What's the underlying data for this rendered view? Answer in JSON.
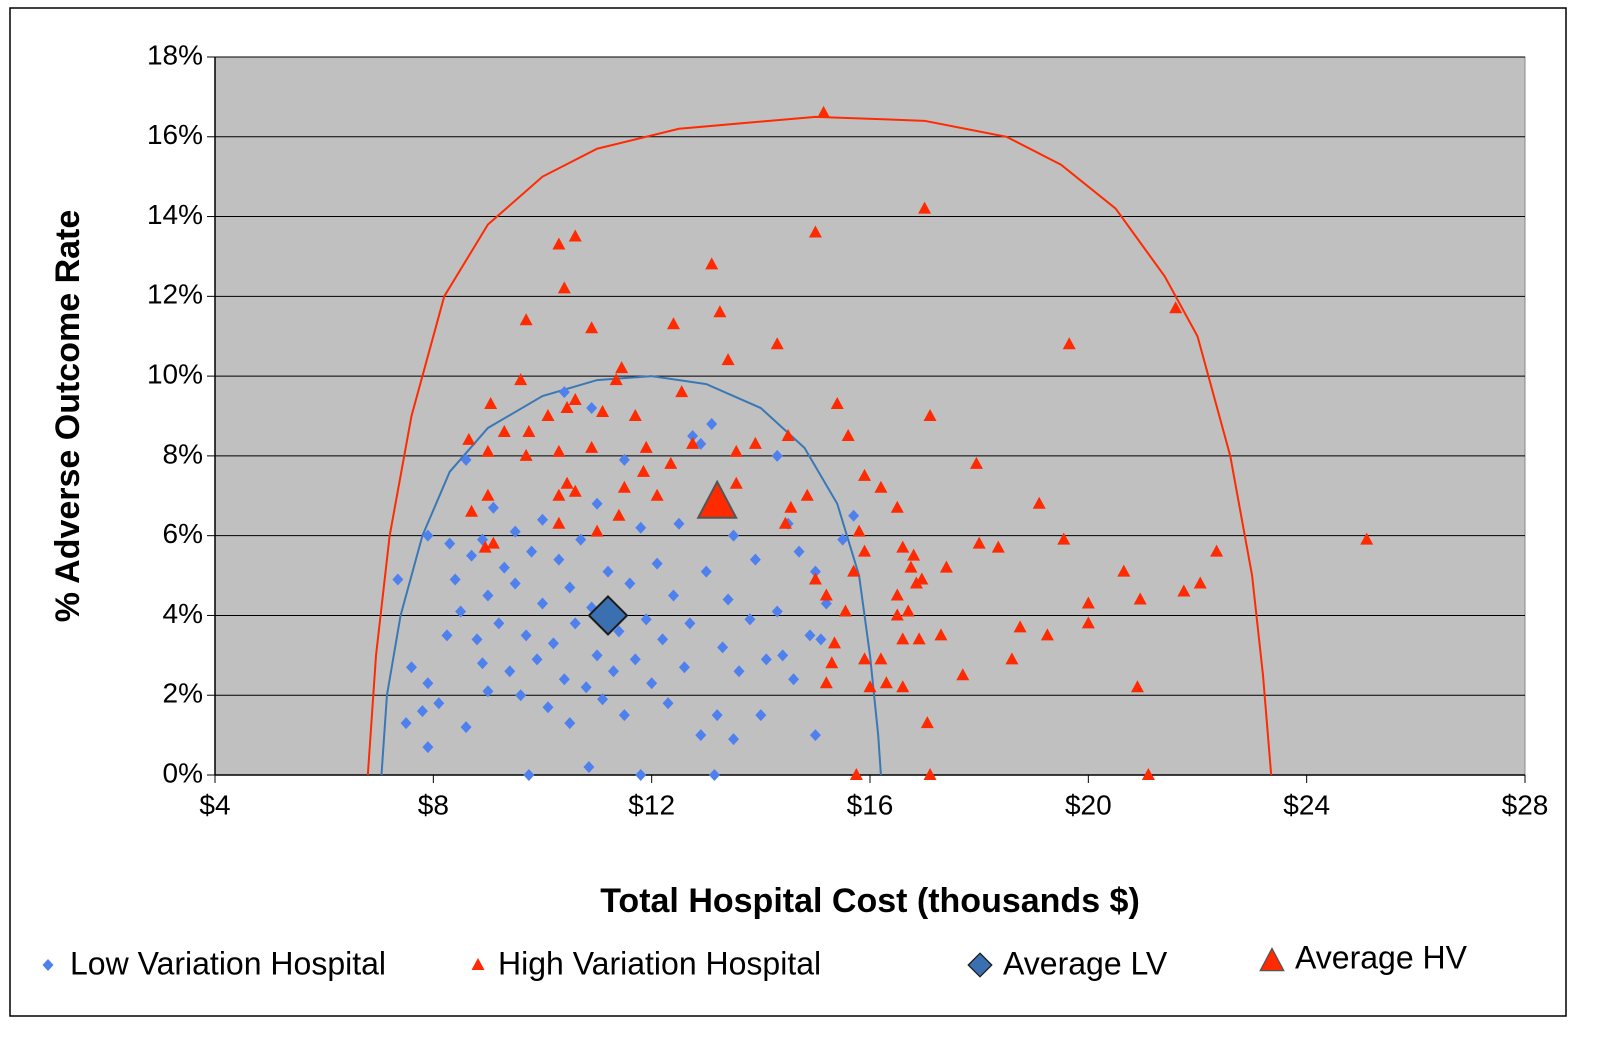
{
  "chart_data": {
    "type": "scatter",
    "xlabel": "Total Hospital Cost (thousands $)",
    "ylabel": "% Adverse Outcome Rate",
    "xlim": [
      4,
      28
    ],
    "ylim": [
      0,
      18
    ],
    "xticks": [
      {
        "value": 4,
        "label": "$4"
      },
      {
        "value": 8,
        "label": "$8"
      },
      {
        "value": 12,
        "label": "$12"
      },
      {
        "value": 16,
        "label": "$16"
      },
      {
        "value": 20,
        "label": "$20"
      },
      {
        "value": 24,
        "label": "$24"
      },
      {
        "value": 28,
        "label": "$28"
      }
    ],
    "yticks": [
      {
        "value": 0,
        "label": "0%"
      },
      {
        "value": 2,
        "label": "2%"
      },
      {
        "value": 4,
        "label": "4%"
      },
      {
        "value": 6,
        "label": "6%"
      },
      {
        "value": 8,
        "label": "8%"
      },
      {
        "value": 10,
        "label": "10%"
      },
      {
        "value": 12,
        "label": "12%"
      },
      {
        "value": 14,
        "label": "14%"
      },
      {
        "value": 16,
        "label": "16%"
      },
      {
        "value": 18,
        "label": "18%"
      }
    ],
    "grid": true,
    "legend": "bottom",
    "series": [
      {
        "name": "Low Variation Hospital",
        "color": "#4f81ee",
        "marker": "diamond",
        "x": [
          7.35,
          7.9,
          7.6,
          7.5,
          7.8,
          7.9,
          7.9,
          8.1,
          8.25,
          8.3,
          8.4,
          8.5,
          8.6,
          8.6,
          8.7,
          8.8,
          8.9,
          8.9,
          9,
          9,
          9.1,
          9.2,
          9.3,
          9.4,
          9.5,
          9.5,
          9.6,
          9.7,
          9.75,
          9.8,
          9.9,
          10,
          10,
          10.1,
          10.2,
          10.3,
          10.4,
          10.4,
          10.5,
          10.5,
          10.6,
          10.7,
          10.8,
          10.85,
          10.9,
          10.9,
          11,
          11,
          11.1,
          11.2,
          11.3,
          11.4,
          11.5,
          11.5,
          11.6,
          11.7,
          11.8,
          11.8,
          11.9,
          12,
          12.1,
          12.2,
          12.3,
          12.4,
          12.5,
          12.6,
          12.7,
          12.75,
          12.9,
          12.9,
          13,
          13.1,
          13.15,
          13.2,
          13.3,
          13.4,
          13.5,
          13.5,
          13.6,
          13.8,
          13.9,
          14,
          14.1,
          14.3,
          14.3,
          14.4,
          14.5,
          14.6,
          14.7,
          14.9,
          15,
          15,
          15.1,
          15.2,
          15.5,
          15.7
        ],
        "values": [
          4.9,
          6,
          2.7,
          1.3,
          1.6,
          0.7,
          2.3,
          1.8,
          3.5,
          5.8,
          4.9,
          4.1,
          7.9,
          1.2,
          5.5,
          3.4,
          2.8,
          5.9,
          4.5,
          2.1,
          6.7,
          3.8,
          5.2,
          2.6,
          6.1,
          4.8,
          2,
          3.5,
          0,
          5.6,
          2.9,
          4.3,
          6.4,
          1.7,
          3.3,
          5.4,
          9.6,
          2.4,
          4.7,
          1.3,
          3.8,
          5.9,
          2.2,
          0.2,
          9.2,
          4.2,
          3,
          6.8,
          1.9,
          5.1,
          2.6,
          3.6,
          7.9,
          1.5,
          4.8,
          2.9,
          0,
          6.2,
          3.9,
          2.3,
          5.3,
          3.4,
          1.8,
          4.5,
          6.3,
          2.7,
          3.8,
          8.5,
          8.3,
          1,
          5.1,
          8.8,
          0,
          1.5,
          3.2,
          4.4,
          0.9,
          6,
          2.6,
          3.9,
          5.4,
          1.5,
          2.9,
          8,
          4.1,
          3,
          6.3,
          2.4,
          5.6,
          3.5,
          5.1,
          1,
          3.4,
          4.3,
          5.9,
          6.5
        ]
      },
      {
        "name": "High Variation Hospital",
        "color": "#ff2a00",
        "marker": "triangle",
        "x": [
          15.15,
          17,
          10.6,
          10.3,
          13.1,
          15,
          10.4,
          13.25,
          21.6,
          9.7,
          10.9,
          12.4,
          14.3,
          19.65,
          13.4,
          11.45,
          11.35,
          9.6,
          12.55,
          10.6,
          10.45,
          11.1,
          11.7,
          9.05,
          15.4,
          17.1,
          10.1,
          9.75,
          9.3,
          8.65,
          11.9,
          13.9,
          14.5,
          15.6,
          12.35,
          10.3,
          10.9,
          9,
          9.7,
          13.55,
          11.85,
          15.9,
          16.2,
          17.95,
          10.45,
          10.6,
          11.5,
          12.1,
          13.55,
          14.55,
          14.85,
          9,
          8.7,
          10.3,
          11.4,
          11,
          12.75,
          16.5,
          19.1,
          14.45,
          15.8,
          10.3,
          8.95,
          9.1,
          18,
          18.35,
          19.55,
          22.35,
          25.1,
          15.9,
          16.6,
          16.75,
          16.8,
          17.4,
          15.7,
          20.65,
          15,
          16.85,
          16.95,
          16.5,
          15.2,
          21.75,
          22.05,
          20,
          20.95,
          15.55,
          16.7,
          16.5,
          20,
          18.75,
          19.25,
          16.6,
          16.9,
          17.3,
          15.35,
          15.9,
          16.2,
          15.3,
          18.6,
          17.7,
          16.3,
          16.6,
          16,
          15.2,
          20.9,
          17.05,
          15.75,
          17.1,
          21.1
        ],
        "values": [
          16.6,
          14.2,
          13.5,
          13.3,
          12.8,
          13.6,
          12.2,
          11.6,
          11.7,
          11.4,
          11.2,
          11.3,
          10.8,
          10.8,
          10.4,
          10.2,
          9.9,
          9.9,
          9.6,
          9.4,
          9.2,
          9.1,
          9,
          9.3,
          9.3,
          9,
          9,
          8.6,
          8.6,
          8.4,
          8.2,
          8.3,
          8.5,
          8.5,
          7.8,
          8.1,
          8.2,
          8.1,
          8,
          8.1,
          7.6,
          7.5,
          7.2,
          7.8,
          7.3,
          7.1,
          7.2,
          7,
          7.3,
          6.7,
          7,
          7,
          6.6,
          7,
          6.5,
          6.1,
          8.3,
          6.7,
          6.8,
          6.3,
          6.1,
          6.3,
          5.7,
          5.8,
          5.8,
          5.7,
          5.9,
          5.6,
          5.9,
          5.6,
          5.7,
          5.2,
          5.5,
          5.2,
          5.1,
          5.1,
          4.9,
          4.8,
          4.9,
          4.5,
          4.5,
          4.6,
          4.8,
          4.3,
          4.4,
          4.1,
          4.1,
          4,
          3.8,
          3.7,
          3.5,
          3.4,
          3.4,
          3.5,
          3.3,
          2.9,
          2.9,
          2.8,
          2.9,
          2.5,
          2.3,
          2.2,
          2.2,
          2.3,
          2.2,
          1.3,
          0,
          0,
          0
        ]
      },
      {
        "name": "Average LV",
        "color": "#3a6fb0",
        "marker": "big-diamond",
        "x": [
          11.2
        ],
        "values": [
          4.0
        ]
      },
      {
        "name": "Average HV",
        "color": "#ff2a00",
        "marker": "big-triangle",
        "x": [
          13.2
        ],
        "values": [
          6.8
        ]
      }
    ],
    "curves": [
      {
        "color": "#ff2a00",
        "x": [
          6.8,
          6.95,
          7.2,
          7.6,
          8.2,
          9,
          10,
          11,
          12.5,
          15,
          17,
          18.5,
          19.5,
          20.5,
          21.4,
          22,
          22.6,
          23,
          23.2,
          23.35
        ],
        "values": [
          0,
          3,
          6,
          9,
          12,
          13.8,
          15,
          15.7,
          16.2,
          16.5,
          16.4,
          16,
          15.3,
          14.2,
          12.5,
          11,
          8,
          5,
          2.5,
          0
        ]
      },
      {
        "color": "#3a78b5",
        "x": [
          7.05,
          7.15,
          7.4,
          7.8,
          8.3,
          9,
          10,
          11,
          12,
          13,
          14,
          14.8,
          15.4,
          15.8,
          16,
          16.15,
          16.2
        ],
        "values": [
          0,
          2,
          4,
          6,
          7.6,
          8.7,
          9.5,
          9.9,
          10,
          9.8,
          9.2,
          8.2,
          6.8,
          5,
          3,
          1,
          0
        ]
      }
    ]
  }
}
